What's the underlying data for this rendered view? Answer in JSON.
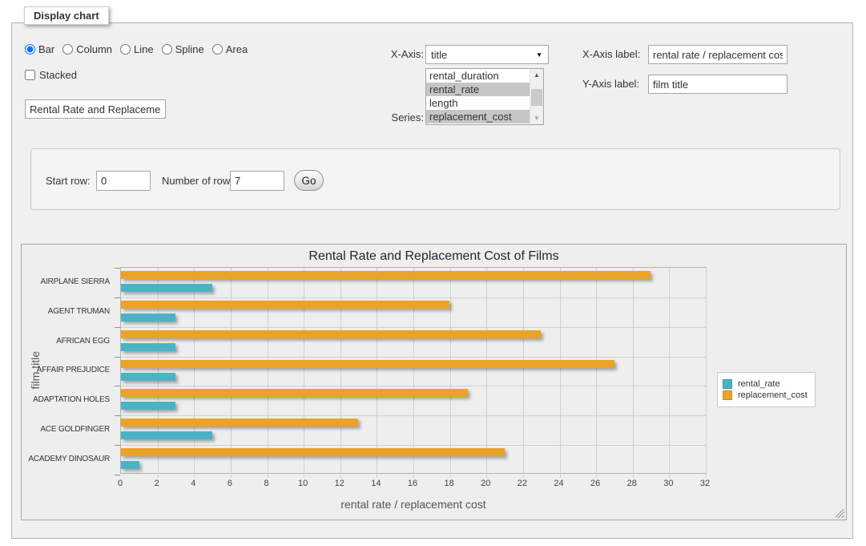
{
  "panel": {
    "legend": "Display chart"
  },
  "icons": {
    "dropdown_arrow": "▼",
    "scroll_up": "▲",
    "scroll_down": "▼"
  },
  "chart_type": {
    "options": [
      "Bar",
      "Column",
      "Line",
      "Spline",
      "Area"
    ],
    "selected": "Bar"
  },
  "stacked": {
    "label": "Stacked",
    "checked": false
  },
  "title_input": {
    "value": "Rental Rate and Replacement Cost of Films"
  },
  "x_axis": {
    "label": "X-Axis:",
    "selected": "title"
  },
  "series_select": {
    "label": "Series:",
    "options": [
      {
        "label": "rental_duration",
        "selected": false
      },
      {
        "label": "rental_rate",
        "selected": true
      },
      {
        "label": "length",
        "selected": false
      },
      {
        "label": "replacement_cost",
        "selected": true
      }
    ]
  },
  "x_axis_label": {
    "label": "X-Axis label:",
    "value": "rental rate / replacement cost"
  },
  "y_axis_label": {
    "label": "Y-Axis label:",
    "value": "film title"
  },
  "row_controls": {
    "start_row_label": "Start row:",
    "start_row_value": "0",
    "num_rows_label": "Number of rows:",
    "num_rows_value": "7",
    "go_label": "Go"
  },
  "chart_data": {
    "type": "bar",
    "orientation": "horizontal",
    "title": "Rental Rate and Replacement Cost of Films",
    "categories": [
      "AIRPLANE SIERRA",
      "AGENT TRUMAN",
      "AFRICAN EGG",
      "AFFAIR PREJUDICE",
      "ADAPTATION HOLES",
      "ACE GOLDFINGER",
      "ACADEMY DINOSAUR"
    ],
    "series": [
      {
        "name": "rental_rate",
        "color": "#4bb2c5",
        "values": [
          4.99,
          2.99,
          2.99,
          2.99,
          2.99,
          4.99,
          0.99
        ]
      },
      {
        "name": "replacement_cost",
        "color": "#eaa228",
        "values": [
          28.99,
          17.99,
          22.99,
          26.99,
          18.99,
          12.99,
          20.99
        ]
      }
    ],
    "group_order": [
      "replacement_cost",
      "rental_rate"
    ],
    "xlabel": "rental rate / replacement cost",
    "ylabel": "film title",
    "xlim": [
      0,
      32
    ],
    "xticks": [
      0,
      2,
      4,
      6,
      8,
      10,
      12,
      14,
      16,
      18,
      20,
      22,
      24,
      26,
      28,
      30,
      32
    ],
    "grid": true,
    "legend_position": "right"
  }
}
